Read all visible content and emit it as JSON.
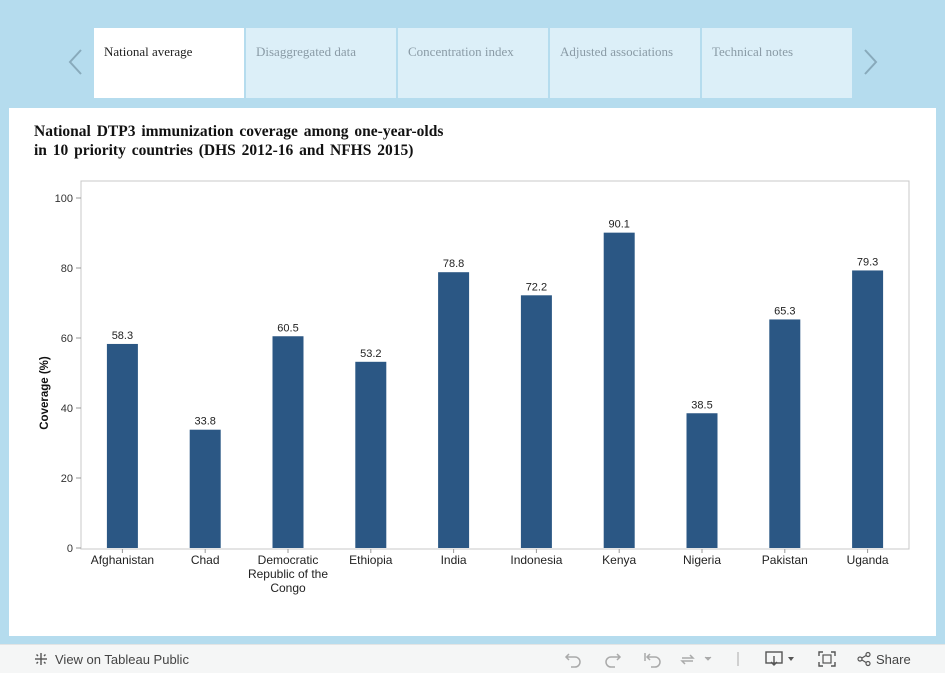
{
  "tabs": [
    {
      "label": "National average",
      "active": true
    },
    {
      "label": "Disaggregated data",
      "active": false
    },
    {
      "label": "Concentration index",
      "active": false
    },
    {
      "label": "Adjusted associations",
      "active": false
    },
    {
      "label": "Technical notes",
      "active": false
    }
  ],
  "chart_title_line1": "National DTP3 immunization coverage among one-year-olds",
  "chart_title_line2": "in 10 priority countries (DHS 2012-16 and NFHS 2015)",
  "chart_data": {
    "type": "bar",
    "title": "National DTP3 immunization coverage among one-year-olds in 10 priority countries (DHS 2012-16 and NFHS 2015)",
    "xlabel": "",
    "ylabel": "Coverage (%)",
    "ylim": [
      0,
      100
    ],
    "yticks": [
      0,
      20,
      40,
      60,
      80,
      100
    ],
    "categories": [
      "Afghanistan",
      "Chad",
      "Democratic Republic of the Congo",
      "Ethiopia",
      "India",
      "Indonesia",
      "Kenya",
      "Nigeria",
      "Pakistan",
      "Uganda"
    ],
    "category_lines": [
      [
        "Afghanistan"
      ],
      [
        "Chad"
      ],
      [
        "Democratic",
        "Republic of the",
        "Congo"
      ],
      [
        "Ethiopia"
      ],
      [
        "India"
      ],
      [
        "Indonesia"
      ],
      [
        "Kenya"
      ],
      [
        "Nigeria"
      ],
      [
        "Pakistan"
      ],
      [
        "Uganda"
      ]
    ],
    "values": [
      58.3,
      33.8,
      60.5,
      53.2,
      78.8,
      72.2,
      90.1,
      38.5,
      65.3,
      79.3
    ],
    "value_labels": [
      "58.3",
      "33.8",
      "60.5",
      "53.2",
      "78.8",
      "72.2",
      "90.1",
      "38.5",
      "65.3",
      "79.3"
    ],
    "bar_color": "#2b5784",
    "grid": false
  },
  "footer": {
    "view_label": "View on Tableau Public",
    "share_label": "Share"
  },
  "colors": {
    "background": "#b5dcee",
    "tab_inactive": "#dceff8",
    "tab_active": "#ffffff"
  }
}
